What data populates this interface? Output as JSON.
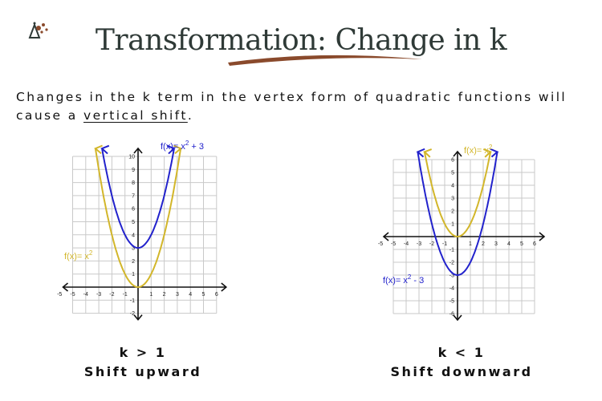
{
  "title": "Transformation: Change in k",
  "intro": {
    "before": "Changes in the k term in the vertex form of quadratic functions will cause a ",
    "emphasis": "vertical shift",
    "after": "."
  },
  "colors": {
    "parent": "#d2b62a",
    "transformed": "#2222cc",
    "swoosh": "#8a4a2c",
    "grid": "#c9c9c9"
  },
  "chart_data": [
    {
      "type": "line",
      "x_ticks": [
        "-5",
        "-5",
        "-4",
        "-3",
        "-2",
        "-1",
        "1",
        "2",
        "3",
        "4",
        "5",
        "6"
      ],
      "y_ticks": [
        "10",
        "9",
        "8",
        "7",
        "6",
        "5",
        "4",
        "3",
        "2",
        "1",
        "-1",
        "-2"
      ],
      "xlim": [
        -6,
        6
      ],
      "ylim": [
        -2.5,
        10
      ],
      "series": [
        {
          "name": "f(x)= x² + 3",
          "color": "#2222cc",
          "k": 3
        },
        {
          "name": "f(x)= x²",
          "color": "#d2b62a",
          "k": 0
        }
      ],
      "labels": {
        "blue_base": "f(x)= x",
        "blue_exp": "2",
        "blue_tail": "+ 3",
        "gold_base": "f(x)= x",
        "gold_exp": "2",
        "gold_tail": ""
      },
      "caption": [
        "k > 1",
        "Shift upward"
      ]
    },
    {
      "type": "line",
      "x_ticks": [
        "-5",
        "-5",
        "-4",
        "-3",
        "-2",
        "-1",
        "1",
        "2",
        "3",
        "4",
        "5",
        "6"
      ],
      "y_ticks": [
        "6",
        "5",
        "4",
        "3",
        "2",
        "1",
        "-1",
        "-2",
        "-3",
        "-4",
        "-5",
        "-6"
      ],
      "xlim": [
        -6,
        6
      ],
      "ylim": [
        -6.5,
        6.5
      ],
      "series": [
        {
          "name": "f(x)= x²",
          "color": "#d2b62a",
          "k": 0
        },
        {
          "name": "f(x)= x² - 3",
          "color": "#2222cc",
          "k": -3
        }
      ],
      "labels": {
        "gold_base": "f(x)= x",
        "gold_exp": "2",
        "gold_tail": "",
        "blue_base": "f(x)= x",
        "blue_exp": "2",
        "blue_tail": "- 3"
      },
      "caption": [
        "k < 1",
        "Shift downward"
      ]
    }
  ]
}
